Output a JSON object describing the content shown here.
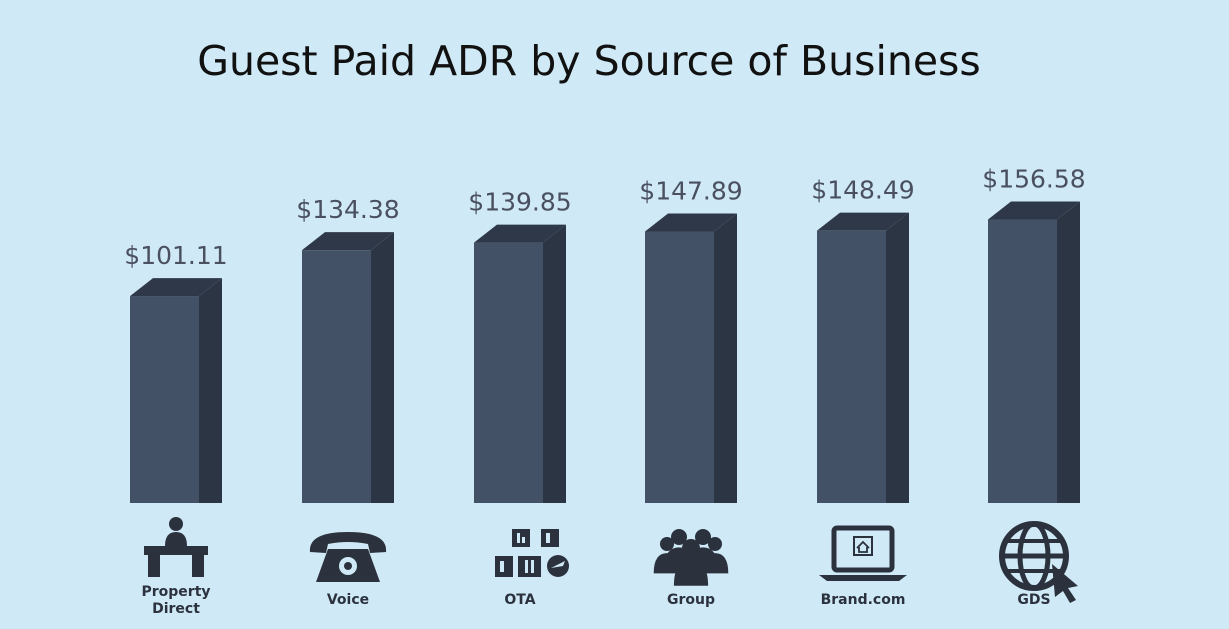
{
  "chart_data": {
    "type": "bar",
    "title": "Guest Paid ADR by Source of Business",
    "categories": [
      "Property Direct",
      "Voice",
      "OTA",
      "Group",
      "Brand.com",
      "GDS"
    ],
    "values": [
      101.11,
      134.38,
      139.85,
      147.89,
      148.49,
      156.58
    ],
    "value_labels": [
      "$101.11",
      "$134.38",
      "$139.85",
      "$147.89",
      "$148.49",
      "$156.58"
    ],
    "category_labels": [
      [
        "Property",
        "Direct"
      ],
      [
        "Voice"
      ],
      [
        "OTA"
      ],
      [
        "Group"
      ],
      [
        "Brand.com"
      ],
      [
        "GDS"
      ]
    ],
    "icons": [
      "front-desk-icon",
      "telephone-icon",
      "ota-logos-icon",
      "group-icon",
      "laptop-home-icon",
      "globe-cursor-icon"
    ],
    "xlabel": "",
    "ylabel": "",
    "ylim": [
      0,
      165
    ],
    "grid": false,
    "legend": "none",
    "colors": {
      "bar_front": "#425166",
      "bar_side": "#2c3543",
      "bar_top": "#2e3848",
      "background": "#cfeaf6",
      "text": "#111111"
    }
  }
}
